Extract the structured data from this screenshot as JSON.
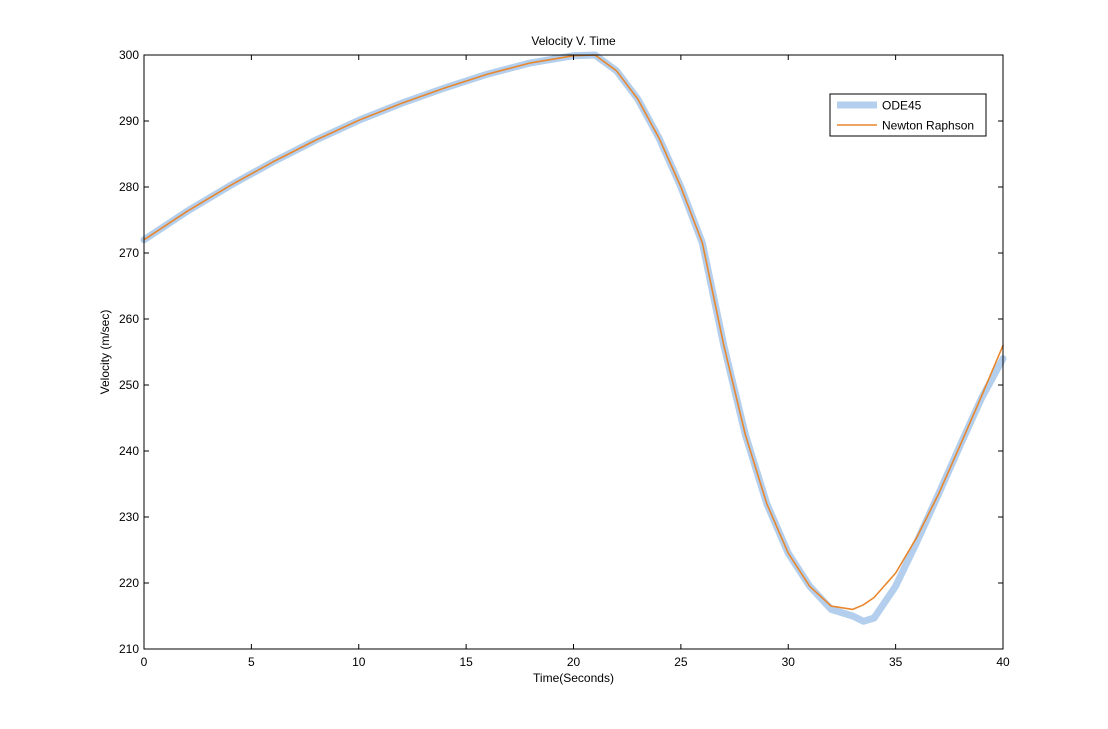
{
  "chart_data": {
    "type": "line",
    "title": "Velocity V. Time",
    "xlabel": "Time(Seconds)",
    "ylabel": "Velocity (m/sec)",
    "xlim": [
      0,
      40
    ],
    "ylim": [
      210,
      300
    ],
    "xticks": [
      0,
      5,
      10,
      15,
      20,
      25,
      30,
      35,
      40
    ],
    "yticks": [
      210,
      220,
      230,
      240,
      250,
      260,
      270,
      280,
      290,
      300
    ],
    "grid": false,
    "legend_position": "top-right",
    "series": [
      {
        "name": "ODE45",
        "color": "#b3cfed",
        "x": [
          0,
          2,
          4,
          6,
          8,
          10,
          12,
          14,
          16,
          18,
          20,
          21,
          22,
          23,
          24,
          25,
          26,
          27,
          28,
          29,
          30,
          31,
          32,
          33,
          33.5,
          34,
          35,
          36,
          37,
          38,
          39,
          40
        ],
        "y": [
          272,
          276.3,
          280.2,
          283.8,
          287.1,
          290.1,
          292.7,
          295,
          297.1,
          298.8,
          299.9,
          300,
          297.6,
          293.3,
          287.3,
          280,
          271.5,
          256,
          242.5,
          232,
          224.5,
          219.5,
          216,
          215,
          214.2,
          214.7,
          219.5,
          226.3,
          233.5,
          240.8,
          248,
          254
        ]
      },
      {
        "name": "Newton Raphson",
        "color": "#e8872e",
        "x": [
          0,
          2,
          4,
          6,
          8,
          10,
          12,
          14,
          16,
          18,
          20,
          21,
          22,
          23,
          24,
          25,
          26,
          27,
          28,
          29,
          30,
          31,
          32,
          33,
          33.5,
          34,
          35,
          36,
          37,
          38,
          39,
          40
        ],
        "y": [
          272,
          276.3,
          280.2,
          283.8,
          287.1,
          290.1,
          292.7,
          295,
          297.1,
          298.8,
          299.9,
          300,
          297.6,
          293.3,
          287.3,
          280,
          271.5,
          256,
          242.5,
          232,
          224.5,
          219.5,
          216.5,
          216,
          216.7,
          217.8,
          221.5,
          227,
          233.5,
          240.8,
          248.3,
          256
        ]
      }
    ]
  }
}
